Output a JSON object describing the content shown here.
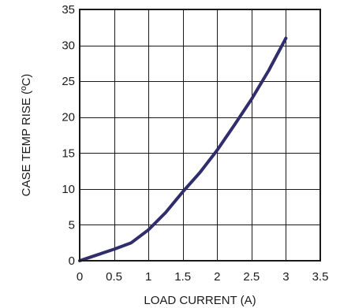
{
  "chart_data": {
    "type": "line",
    "xlabel": "LOAD CURRENT (A)",
    "ylabel": "CASE TEMP RISE (ºC)",
    "xlim": [
      0,
      3.5
    ],
    "ylim": [
      0,
      35
    ],
    "x_ticks": [
      0,
      0.5,
      1,
      1.5,
      2,
      2.5,
      3,
      3.5
    ],
    "y_ticks": [
      0,
      5,
      10,
      15,
      20,
      25,
      30,
      35
    ],
    "x_tick_labels": [
      "0",
      "0.5",
      "1",
      "1.5",
      "2",
      "2.5",
      "3",
      "3.5"
    ],
    "y_tick_labels": [
      "0",
      "5",
      "10",
      "15",
      "20",
      "25",
      "30",
      "35"
    ],
    "grid": true,
    "legend": "none",
    "series": [
      {
        "color": "#2f2d6b",
        "x": [
          0,
          0.25,
          0.5,
          0.75,
          1.0,
          1.25,
          1.5,
          1.75,
          2.0,
          2.25,
          2.5,
          2.75,
          3.0
        ],
        "y": [
          0,
          0.8,
          1.6,
          2.5,
          4.3,
          6.7,
          9.6,
          12.3,
          15.4,
          18.9,
          22.5,
          26.5,
          31.0
        ]
      }
    ]
  }
}
